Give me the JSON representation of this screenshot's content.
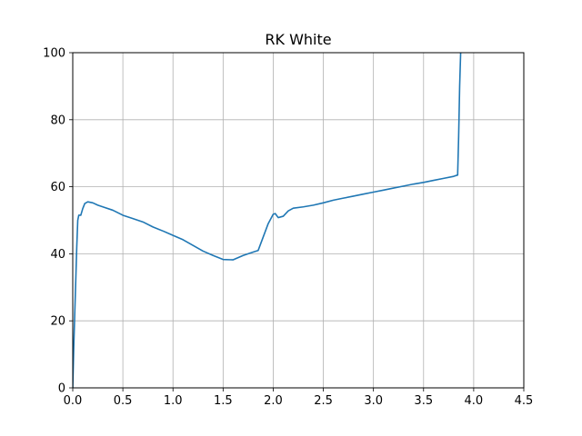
{
  "chart_data": {
    "type": "line",
    "title": "RK White",
    "xlabel": "",
    "ylabel": "",
    "xlim": [
      0,
      4.5
    ],
    "ylim": [
      0,
      100
    ],
    "x_ticks": [
      0.0,
      0.5,
      1.0,
      1.5,
      2.0,
      2.5,
      3.0,
      3.5,
      4.0,
      4.5
    ],
    "x_tick_labels": [
      "0.0",
      "0.5",
      "1.0",
      "1.5",
      "2.0",
      "2.5",
      "3.0",
      "3.5",
      "4.0",
      "4.5"
    ],
    "y_ticks": [
      0,
      20,
      40,
      60,
      80,
      100
    ],
    "y_tick_labels": [
      "0",
      "20",
      "40",
      "60",
      "80",
      "100"
    ],
    "grid": true,
    "series": [
      {
        "color": "#1f77b4",
        "x": [
          0.0,
          0.01,
          0.02,
          0.03,
          0.04,
          0.05,
          0.06,
          0.08,
          0.1,
          0.12,
          0.15,
          0.2,
          0.25,
          0.3,
          0.4,
          0.5,
          0.6,
          0.7,
          0.8,
          0.9,
          1.0,
          1.1,
          1.2,
          1.3,
          1.4,
          1.5,
          1.6,
          1.7,
          1.8,
          1.85,
          1.9,
          1.95,
          2.0,
          2.02,
          2.05,
          2.1,
          2.15,
          2.2,
          2.3,
          2.4,
          2.5,
          2.6,
          2.7,
          2.8,
          2.9,
          3.0,
          3.1,
          3.2,
          3.3,
          3.4,
          3.5,
          3.6,
          3.7,
          3.8,
          3.84,
          3.85,
          3.86,
          3.87
        ],
        "y": [
          0,
          12,
          22,
          32,
          42,
          50,
          51.5,
          51.5,
          53.5,
          55,
          55.5,
          55.2,
          54.5,
          54,
          53,
          51.5,
          50.5,
          49.5,
          48,
          46.8,
          45.5,
          44.2,
          42.5,
          40.8,
          39.5,
          38.3,
          38.2,
          39.5,
          40.5,
          41,
          45,
          49,
          51.8,
          52,
          50.8,
          51.2,
          52.8,
          53.6,
          54,
          54.5,
          55.2,
          56,
          56.6,
          57.2,
          57.8,
          58.4,
          59,
          59.6,
          60.2,
          60.8,
          61.3,
          61.9,
          62.5,
          63.1,
          63.5,
          75,
          90,
          100
        ]
      }
    ]
  }
}
